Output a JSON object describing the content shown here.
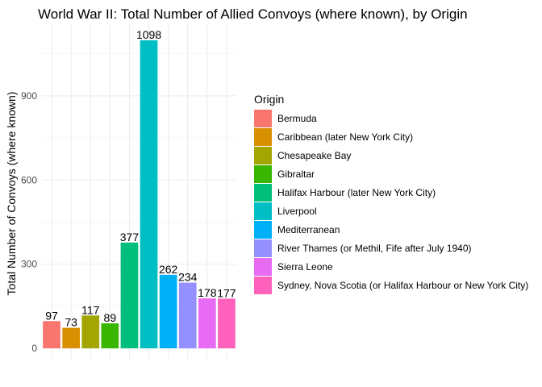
{
  "chart_data": {
    "type": "bar",
    "title": "World War II: Total Number of Allied Convoys (where known), by Origin",
    "xlabel": "",
    "ylabel": "Total Number of Convoys (where known)",
    "ylim": [
      0,
      1150
    ],
    "yticks": [
      0,
      300,
      600,
      900
    ],
    "grid": true,
    "legend": {
      "title": "Origin",
      "placement": "right"
    },
    "categories": [
      "Bermuda",
      "Caribbean (later New York City)",
      "Chesapeake Bay",
      "Gibraltar",
      "Halifax Harbour (later New York City)",
      "Liverpool",
      "Mediterranean",
      "River Thames (or Methil, Fife after July 1940)",
      "Sierra Leone",
      "Sydney, Nova Scotia (or Halifax Harbour or New York City)"
    ],
    "values": [
      97,
      73,
      117,
      89,
      377,
      1098,
      262,
      234,
      178,
      177
    ],
    "colors": [
      "#F8766D",
      "#D89000",
      "#A3A500",
      "#39B600",
      "#00BF7D",
      "#00BFC4",
      "#00B0F6",
      "#9590FF",
      "#E76BF3",
      "#FF62BC"
    ]
  }
}
